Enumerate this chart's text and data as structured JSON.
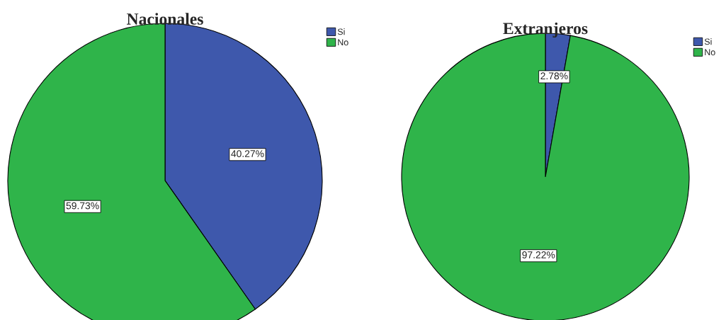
{
  "chart_data": [
    {
      "type": "pie",
      "title": "Nacionales",
      "categories": [
        "Si",
        "No"
      ],
      "values": [
        40.27,
        59.73
      ],
      "colors": [
        "#3e58ac",
        "#2fb44a"
      ],
      "value_labels": [
        "40.27%",
        "59.73%"
      ],
      "legend": "top right"
    },
    {
      "type": "pie",
      "title": "Extranjeros",
      "categories": [
        "Si",
        "No"
      ],
      "values": [
        2.78,
        97.22
      ],
      "colors": [
        "#3e58ac",
        "#2fb44a"
      ],
      "value_labels": [
        "2.78%",
        "97.22%"
      ],
      "legend": "top right"
    }
  ]
}
